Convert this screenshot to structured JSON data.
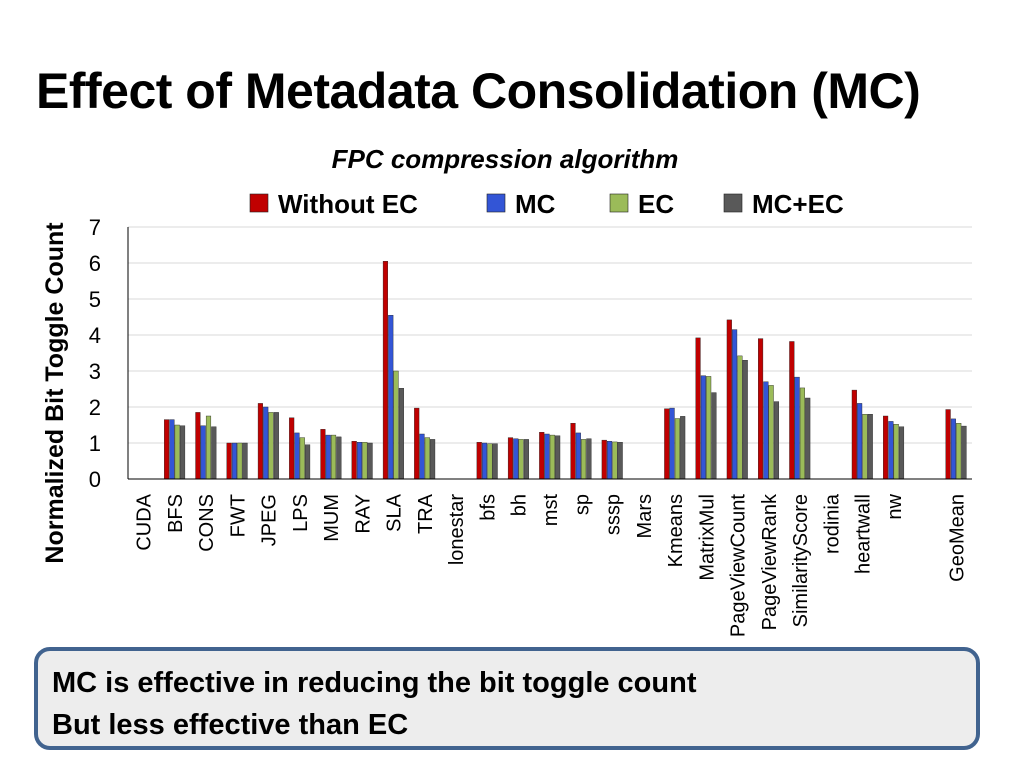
{
  "slide": {
    "title": "Effect of Metadata Consolidation (MC)"
  },
  "callout": {
    "lines": [
      "MC is effective in reducing the bit toggle count",
      "But less effective than EC"
    ]
  },
  "chart_data": {
    "type": "bar",
    "title": "FPC compression algorithm",
    "ylabel": "Normalized Bit Toggle Count",
    "xlabel": "",
    "ylim": [
      0,
      7
    ],
    "yticks": [
      0,
      1,
      2,
      3,
      4,
      5,
      6,
      7
    ],
    "grid": true,
    "legend_position": "top",
    "categories": [
      "CUDA",
      "BFS",
      "CONS",
      "FWT",
      "JPEG",
      "LPS",
      "MUM",
      "RAY",
      "SLA",
      "TRA",
      "lonestar",
      "bfs",
      "bh",
      "mst",
      "sp",
      "sssp",
      "Mars",
      "Kmeans",
      "MatrixMul",
      "PageViewCount",
      "PageViewRank",
      "SimilarityScore",
      "rodinia",
      "heartwall",
      "nw",
      "",
      "GeoMean"
    ],
    "series": [
      {
        "name": "Without EC",
        "color": "#c00000",
        "values": [
          null,
          1.65,
          1.85,
          1.0,
          2.1,
          1.7,
          1.38,
          1.05,
          6.05,
          1.97,
          null,
          1.02,
          1.15,
          1.3,
          1.55,
          1.08,
          null,
          1.95,
          3.92,
          4.42,
          3.9,
          3.82,
          null,
          2.47,
          1.75,
          null,
          1.93
        ]
      },
      {
        "name": "MC",
        "color": "#3355d6",
        "values": [
          null,
          1.65,
          1.48,
          1.0,
          2.0,
          1.28,
          1.22,
          1.02,
          4.55,
          1.25,
          null,
          1.0,
          1.12,
          1.25,
          1.28,
          1.05,
          null,
          1.97,
          2.87,
          4.15,
          2.7,
          2.83,
          null,
          2.1,
          1.6,
          null,
          1.67
        ]
      },
      {
        "name": "EC",
        "color": "#9bbb59",
        "values": [
          null,
          1.5,
          1.75,
          1.0,
          1.85,
          1.15,
          1.22,
          1.02,
          3.0,
          1.15,
          null,
          0.98,
          1.1,
          1.22,
          1.1,
          1.03,
          null,
          1.68,
          2.85,
          3.42,
          2.6,
          2.53,
          null,
          1.8,
          1.52,
          null,
          1.55
        ]
      },
      {
        "name": "MC+EC",
        "color": "#595959",
        "values": [
          null,
          1.48,
          1.45,
          1.0,
          1.85,
          0.95,
          1.17,
          1.0,
          2.52,
          1.1,
          null,
          0.98,
          1.1,
          1.2,
          1.12,
          1.02,
          null,
          1.74,
          2.4,
          3.3,
          2.15,
          2.25,
          null,
          1.8,
          1.45,
          null,
          1.47
        ]
      }
    ]
  }
}
